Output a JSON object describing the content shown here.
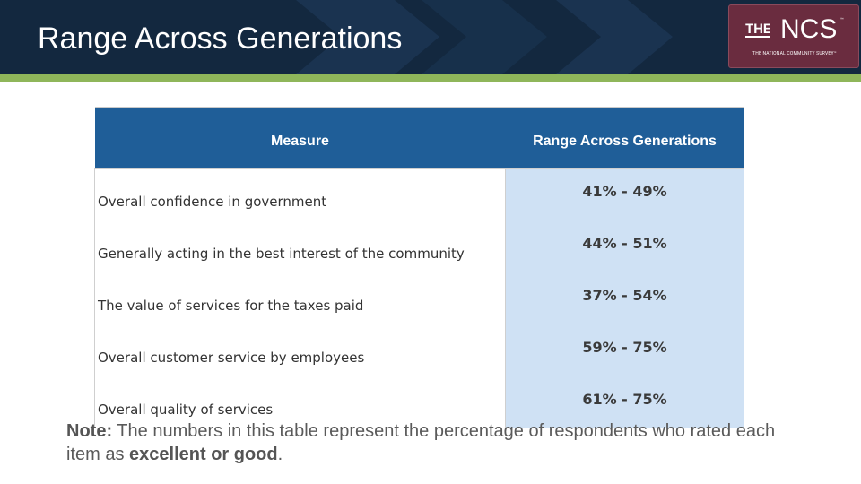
{
  "header": {
    "title": "Range Across Generations"
  },
  "logo": {
    "mark_small": "THE",
    "mark_large": "NCS",
    "trademark": "™",
    "tagline": "THE NATIONAL COMMUNITY SURVEY™"
  },
  "table": {
    "columns": [
      "Measure",
      "Range Across Generations"
    ],
    "rows": [
      [
        "Overall confidence in government",
        "41% - 49%"
      ],
      [
        "Generally acting in the best interest of the community",
        "44% - 51%"
      ],
      [
        "The value of services for the taxes paid",
        "37% - 54%"
      ],
      [
        "Overall customer service by employees",
        "59% - 75%"
      ],
      [
        "Overall quality of services",
        "61% - 75%"
      ]
    ]
  },
  "note": {
    "label": "Note:",
    "text": " The numbers in this table represent the percentage of respondents who rated each item as ",
    "emphasis": "excellent or good",
    "end": "."
  }
}
